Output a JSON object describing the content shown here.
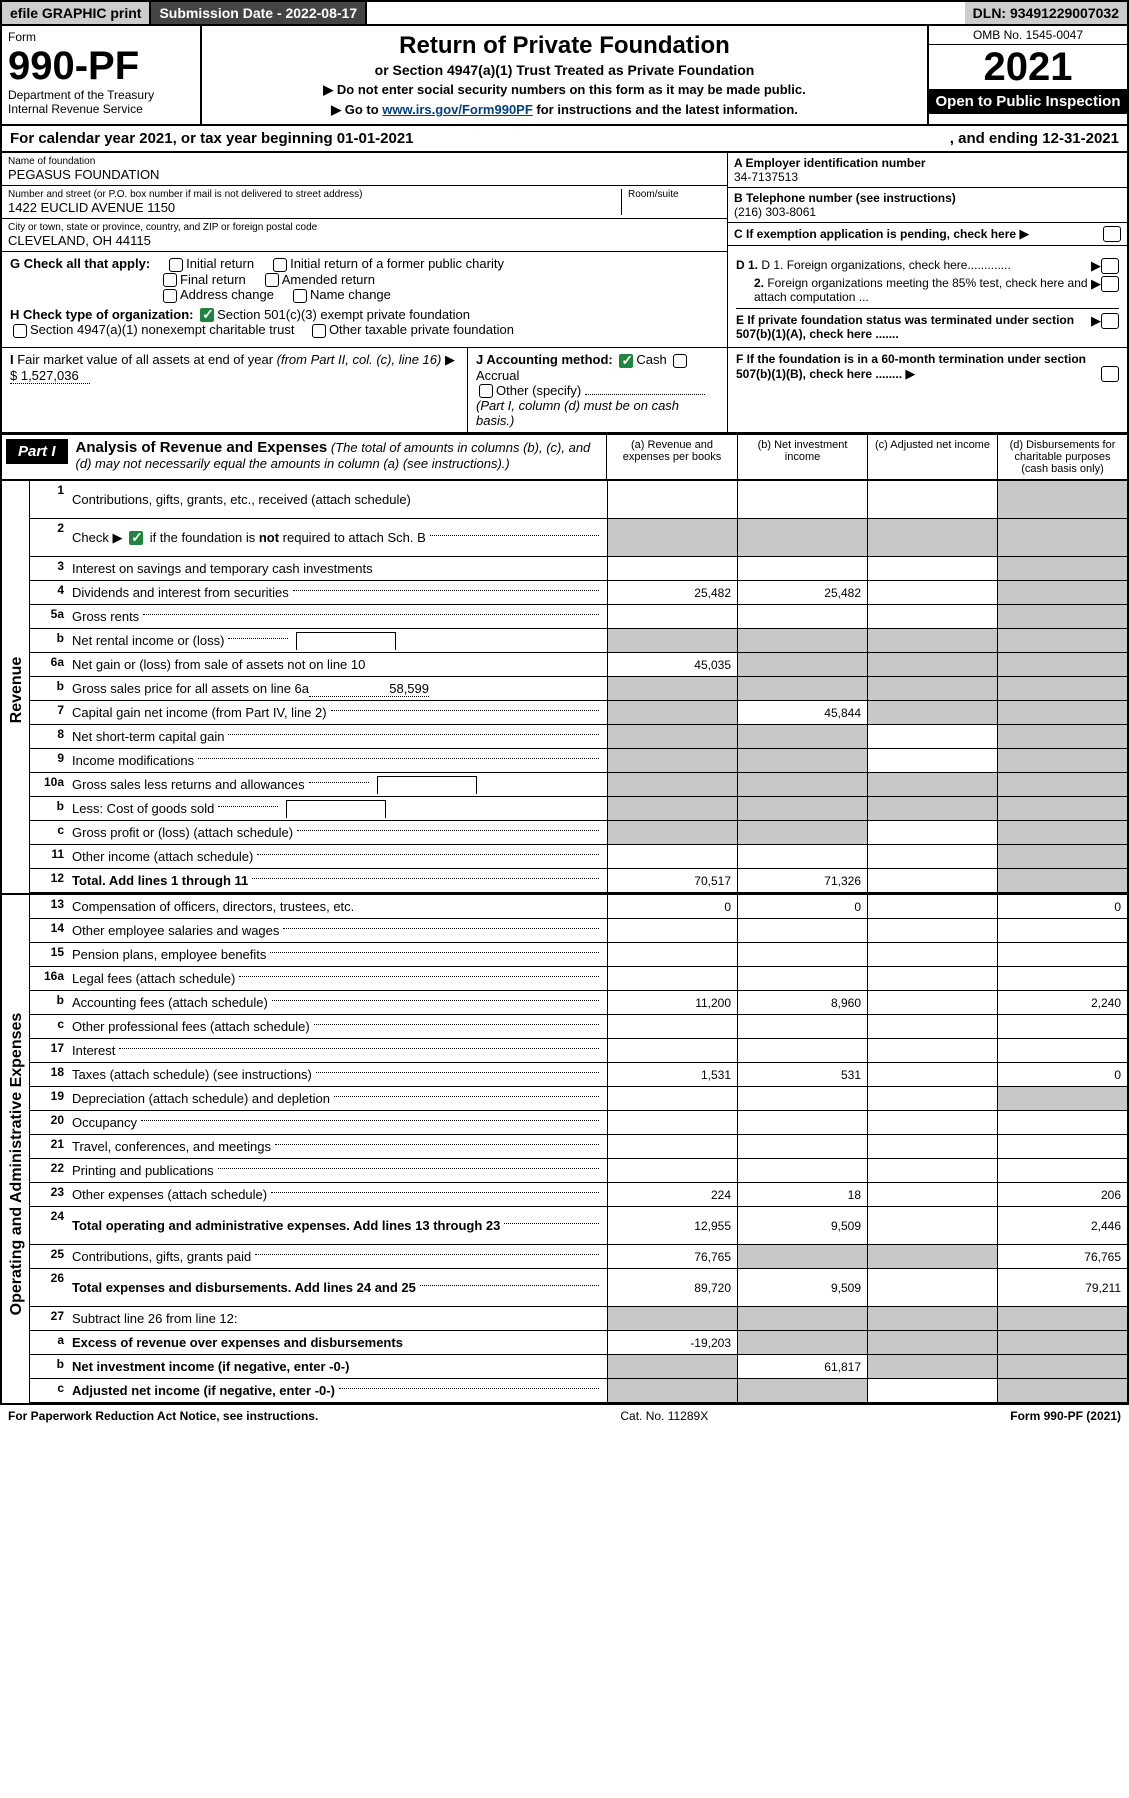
{
  "topbar": {
    "efile": "efile GRAPHIC print",
    "sub_label": "Submission Date - 2022-08-17",
    "dln": "DLN: 93491229007032"
  },
  "header": {
    "form_word": "Form",
    "form_no": "990-PF",
    "dept": "Department of the Treasury",
    "irs": "Internal Revenue Service",
    "title": "Return of Private Foundation",
    "subtitle": "or Section 4947(a)(1) Trust Treated as Private Foundation",
    "instr1": "▶ Do not enter social security numbers on this form as it may be made public.",
    "instr2_pre": "▶ Go to ",
    "instr2_link": "www.irs.gov/Form990PF",
    "instr2_post": " for instructions and the latest information.",
    "omb": "OMB No. 1545-0047",
    "year": "2021",
    "open": "Open to Public Inspection"
  },
  "cal": {
    "pre": "For calendar year 2021, or tax year beginning 01-01-2021",
    "post": ", and ending 12-31-2021"
  },
  "info": {
    "name_lbl": "Name of foundation",
    "name": "PEGASUS FOUNDATION",
    "addr_lbl": "Number and street (or P.O. box number if mail is not delivered to street address)",
    "addr": "1422 EUCLID AVENUE 1150",
    "room_lbl": "Room/suite",
    "city_lbl": "City or town, state or province, country, and ZIP or foreign postal code",
    "city": "CLEVELAND, OH  44115",
    "ein_lbl": "A Employer identification number",
    "ein": "34-7137513",
    "tel_lbl": "B Telephone number (see instructions)",
    "tel": "(216) 303-8061",
    "c": "C If exemption application is pending, check here",
    "d1": "D 1. Foreign organizations, check here.............",
    "d2": "2. Foreign organizations meeting the 85% test, check here and attach computation ...",
    "e": "E  If private foundation status was terminated under section 507(b)(1)(A), check here .......",
    "f": "F  If the foundation is in a 60-month termination under section 507(b)(1)(B), check here ........"
  },
  "g": {
    "label": "G Check all that apply:",
    "opts": [
      "Initial return",
      "Initial return of a former public charity",
      "Final return",
      "Amended return",
      "Address change",
      "Name change"
    ]
  },
  "h": {
    "label": "H Check type of organization:",
    "opt1": "Section 501(c)(3) exempt private foundation",
    "opt2": "Section 4947(a)(1) nonexempt charitable trust",
    "opt3": "Other taxable private foundation"
  },
  "i": {
    "label": "I Fair market value of all assets at end of year (from Part II, col. (c), line 16)",
    "val": "$  1,527,036"
  },
  "j": {
    "label": "J Accounting method:",
    "cash": "Cash",
    "accrual": "Accrual",
    "other": "Other (specify)",
    "note": "(Part I, column (d) must be on cash basis.)"
  },
  "part1": {
    "tab": "Part I",
    "title": "Analysis of Revenue and Expenses",
    "desc": "(The total of amounts in columns (b), (c), and (d) may not necessarily equal the amounts in column (a) (see instructions).)",
    "cols": [
      "(a)   Revenue and expenses per books",
      "(b)   Net investment income",
      "(c)   Adjusted net income",
      "(d)   Disbursements for charitable purposes (cash basis only)"
    ]
  },
  "sections": {
    "revenue": "Revenue",
    "expenses": "Operating and Administrative Expenses"
  },
  "rows": [
    {
      "n": "1",
      "t": "Contributions, gifts, grants, etc., received (attach schedule)",
      "a": "",
      "b": "",
      "c": "",
      "d": "",
      "dg": true,
      "tall": true,
      "nodots": true
    },
    {
      "n": "2",
      "t": "Check ▶ ☑ if the foundation is not required to attach Sch. B",
      "a": "",
      "b": "",
      "c": "",
      "d": "",
      "ag": true,
      "bg": true,
      "cg": true,
      "dg": true,
      "tall": true,
      "ck": true
    },
    {
      "n": "3",
      "t": "Interest on savings and temporary cash investments",
      "a": "",
      "b": "",
      "c": "",
      "d": "",
      "dg": true,
      "nodots": true
    },
    {
      "n": "4",
      "t": "Dividends and interest from securities",
      "a": "25,482",
      "b": "25,482",
      "c": "",
      "d": "",
      "dg": true
    },
    {
      "n": "5a",
      "t": "Gross rents",
      "a": "",
      "b": "",
      "c": "",
      "d": "",
      "dg": true
    },
    {
      "n": "b",
      "t": "Net rental income or (loss)",
      "a": "",
      "b": "",
      "c": "",
      "d": "",
      "ag": true,
      "bg": true,
      "cg": true,
      "dg": true,
      "sub": true
    },
    {
      "n": "6a",
      "t": "Net gain or (loss) from sale of assets not on line 10",
      "a": "45,035",
      "b": "",
      "c": "",
      "d": "",
      "bg": true,
      "cg": true,
      "dg": true,
      "nodots": true
    },
    {
      "n": "b",
      "t": "Gross sales price for all assets on line 6a",
      "a": "",
      "b": "",
      "c": "",
      "d": "",
      "ag": true,
      "bg": true,
      "cg": true,
      "dg": true,
      "subval": "58,599"
    },
    {
      "n": "7",
      "t": "Capital gain net income (from Part IV, line 2)",
      "a": "",
      "b": "45,844",
      "c": "",
      "d": "",
      "ag": true,
      "cg": true,
      "dg": true
    },
    {
      "n": "8",
      "t": "Net short-term capital gain",
      "a": "",
      "b": "",
      "c": "",
      "d": "",
      "ag": true,
      "bg": true,
      "dg": true
    },
    {
      "n": "9",
      "t": "Income modifications",
      "a": "",
      "b": "",
      "c": "",
      "d": "",
      "ag": true,
      "bg": true,
      "dg": true
    },
    {
      "n": "10a",
      "t": "Gross sales less returns and allowances",
      "a": "",
      "b": "",
      "c": "",
      "d": "",
      "ag": true,
      "bg": true,
      "cg": true,
      "dg": true,
      "sub": true
    },
    {
      "n": "b",
      "t": "Less: Cost of goods sold",
      "a": "",
      "b": "",
      "c": "",
      "d": "",
      "ag": true,
      "bg": true,
      "cg": true,
      "dg": true,
      "sub": true
    },
    {
      "n": "c",
      "t": "Gross profit or (loss) (attach schedule)",
      "a": "",
      "b": "",
      "c": "",
      "d": "",
      "ag": true,
      "bg": true,
      "dg": true
    },
    {
      "n": "11",
      "t": "Other income (attach schedule)",
      "a": "",
      "b": "",
      "c": "",
      "d": "",
      "dg": true
    },
    {
      "n": "12",
      "t": "Total. Add lines 1 through 11",
      "a": "70,517",
      "b": "71,326",
      "c": "",
      "d": "",
      "dg": true,
      "bold": true
    }
  ],
  "exp_rows": [
    {
      "n": "13",
      "t": "Compensation of officers, directors, trustees, etc.",
      "a": "0",
      "b": "0",
      "c": "",
      "d": "0",
      "nodots": true
    },
    {
      "n": "14",
      "t": "Other employee salaries and wages",
      "a": "",
      "b": "",
      "c": "",
      "d": ""
    },
    {
      "n": "15",
      "t": "Pension plans, employee benefits",
      "a": "",
      "b": "",
      "c": "",
      "d": ""
    },
    {
      "n": "16a",
      "t": "Legal fees (attach schedule)",
      "a": "",
      "b": "",
      "c": "",
      "d": ""
    },
    {
      "n": "b",
      "t": "Accounting fees (attach schedule)",
      "a": "11,200",
      "b": "8,960",
      "c": "",
      "d": "2,240"
    },
    {
      "n": "c",
      "t": "Other professional fees (attach schedule)",
      "a": "",
      "b": "",
      "c": "",
      "d": ""
    },
    {
      "n": "17",
      "t": "Interest",
      "a": "",
      "b": "",
      "c": "",
      "d": ""
    },
    {
      "n": "18",
      "t": "Taxes (attach schedule) (see instructions)",
      "a": "1,531",
      "b": "531",
      "c": "",
      "d": "0"
    },
    {
      "n": "19",
      "t": "Depreciation (attach schedule) and depletion",
      "a": "",
      "b": "",
      "c": "",
      "d": "",
      "dg": true
    },
    {
      "n": "20",
      "t": "Occupancy",
      "a": "",
      "b": "",
      "c": "",
      "d": ""
    },
    {
      "n": "21",
      "t": "Travel, conferences, and meetings",
      "a": "",
      "b": "",
      "c": "",
      "d": ""
    },
    {
      "n": "22",
      "t": "Printing and publications",
      "a": "",
      "b": "",
      "c": "",
      "d": ""
    },
    {
      "n": "23",
      "t": "Other expenses (attach schedule)",
      "a": "224",
      "b": "18",
      "c": "",
      "d": "206"
    },
    {
      "n": "24",
      "t": "Total operating and administrative expenses. Add lines 13 through 23",
      "a": "12,955",
      "b": "9,509",
      "c": "",
      "d": "2,446",
      "bold": true,
      "tall": true
    },
    {
      "n": "25",
      "t": "Contributions, gifts, grants paid",
      "a": "76,765",
      "b": "",
      "c": "",
      "d": "76,765",
      "bg": true,
      "cg": true
    },
    {
      "n": "26",
      "t": "Total expenses and disbursements. Add lines 24 and 25",
      "a": "89,720",
      "b": "9,509",
      "c": "",
      "d": "79,211",
      "bold": true,
      "tall": true
    },
    {
      "n": "27",
      "t": "Subtract line 26 from line 12:",
      "a": "",
      "b": "",
      "c": "",
      "d": "",
      "ag": true,
      "bg": true,
      "cg": true,
      "dg": true,
      "nodots": true
    },
    {
      "n": "a",
      "t": "Excess of revenue over expenses and disbursements",
      "a": "-19,203",
      "b": "",
      "c": "",
      "d": "",
      "bg": true,
      "cg": true,
      "dg": true,
      "bold": true,
      "nodots": true
    },
    {
      "n": "b",
      "t": "Net investment income (if negative, enter -0-)",
      "a": "",
      "b": "61,817",
      "c": "",
      "d": "",
      "ag": true,
      "cg": true,
      "dg": true,
      "bold": true,
      "nodots": true
    },
    {
      "n": "c",
      "t": "Adjusted net income (if negative, enter -0-)",
      "a": "",
      "b": "",
      "c": "",
      "d": "",
      "ag": true,
      "bg": true,
      "dg": true,
      "bold": true
    }
  ],
  "footer": {
    "left": "For Paperwork Reduction Act Notice, see instructions.",
    "mid": "Cat. No. 11289X",
    "right": "Form 990-PF (2021)"
  },
  "colors": {
    "grey": "#c8c8c8",
    "green": "#20853e",
    "link": "#004080"
  }
}
